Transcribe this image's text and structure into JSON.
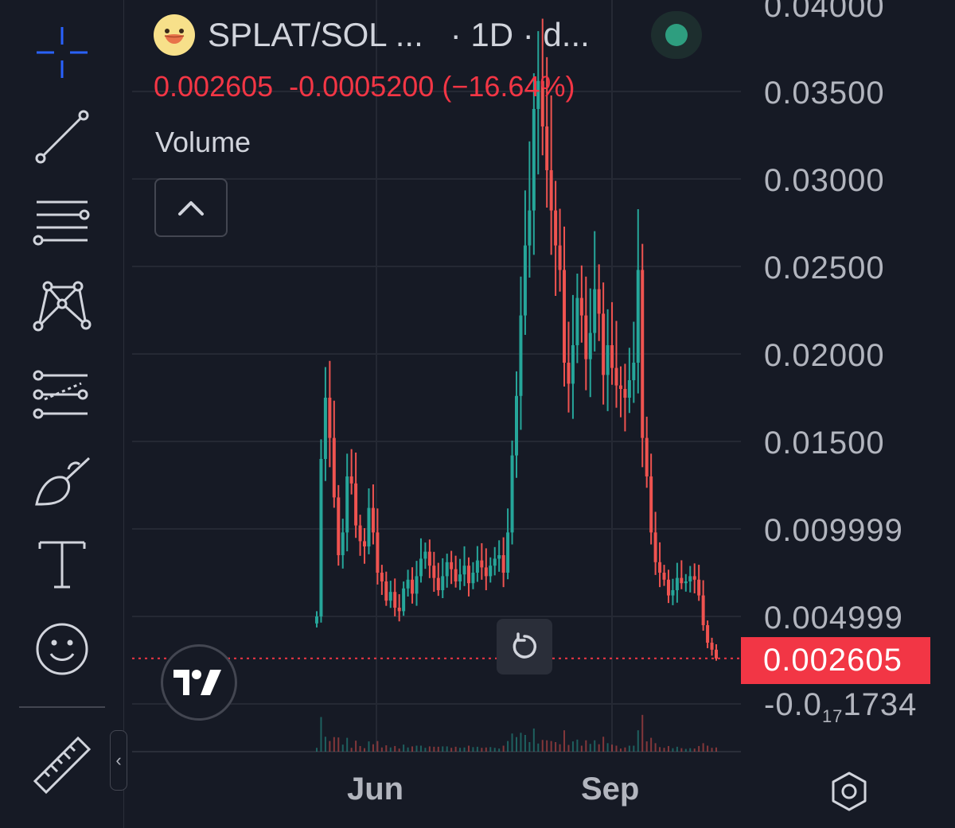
{
  "legend": {
    "symbol": "SPLAT/SOL ...",
    "interval": "· 1D · d...",
    "last": "0.002605",
    "change": "-0.0005200",
    "change_pct": "(−16.64%)",
    "volume_label": "Volume",
    "logo_icon": "duck-face-icon",
    "status_color": "#2e9e7f"
  },
  "price_scale": {
    "ticks": [
      "0.04000",
      "0.03500",
      "0.03000",
      "0.02500",
      "0.02000",
      "0.01500",
      "0.009999",
      "0.004999"
    ],
    "last_price": "0.002605",
    "bottom_label_prefix": "-0.0",
    "bottom_label_sub": "17",
    "bottom_label_suffix": "1734"
  },
  "time_scale": {
    "labels": [
      "Jun",
      "Sep"
    ]
  },
  "toolbar": {
    "tools": [
      "crosshair-icon",
      "trendline-icon",
      "fib-retracement-icon",
      "pattern-icon",
      "forecast-icon",
      "brush-icon",
      "text-icon",
      "emoji-icon",
      "ruler-icon"
    ],
    "collapse_glyph": "‹"
  },
  "colors": {
    "up": "#26a69a",
    "down": "#ef5350",
    "background": "#161a25",
    "accent": "#2962ff",
    "last_price_bg": "#f23645"
  },
  "chart_data": {
    "type": "candlestick",
    "y_unit": "SOL",
    "ylim": [
      -0.002,
      0.041
    ],
    "x_labels": [
      "Jun",
      "Sep"
    ],
    "closes": [
      0.005,
      0.014,
      0.0175,
      0.0152,
      0.0118,
      0.0085,
      0.0098,
      0.013,
      0.0126,
      0.0102,
      0.0093,
      0.009,
      0.0112,
      0.0098,
      0.0075,
      0.007,
      0.0059,
      0.0064,
      0.0055,
      0.0053,
      0.0066,
      0.0071,
      0.0063,
      0.0073,
      0.0083,
      0.0087,
      0.0079,
      0.0072,
      0.0065,
      0.0073,
      0.0081,
      0.0077,
      0.007,
      0.0074,
      0.0079,
      0.0069,
      0.0075,
      0.0082,
      0.0078,
      0.0073,
      0.0079,
      0.0083,
      0.0085,
      0.0075,
      0.0098,
      0.0142,
      0.0176,
      0.0222,
      0.0262,
      0.0282,
      0.034,
      0.0356,
      0.033,
      0.0305,
      0.0282,
      0.0262,
      0.0248,
      0.0195,
      0.0183,
      0.0205,
      0.0232,
      0.0222,
      0.0197,
      0.0212,
      0.0237,
      0.0223,
      0.0188,
      0.0205,
      0.0192,
      0.0182,
      0.018,
      0.0175,
      0.0185,
      0.0195,
      0.0248,
      0.0152,
      0.013,
      0.0098,
      0.0081,
      0.0075,
      0.0071,
      0.0062,
      0.0065,
      0.0072,
      0.0069,
      0.007,
      0.0073,
      0.0071,
      0.0062,
      0.0045,
      0.0035,
      0.0031,
      0.0026
    ]
  }
}
